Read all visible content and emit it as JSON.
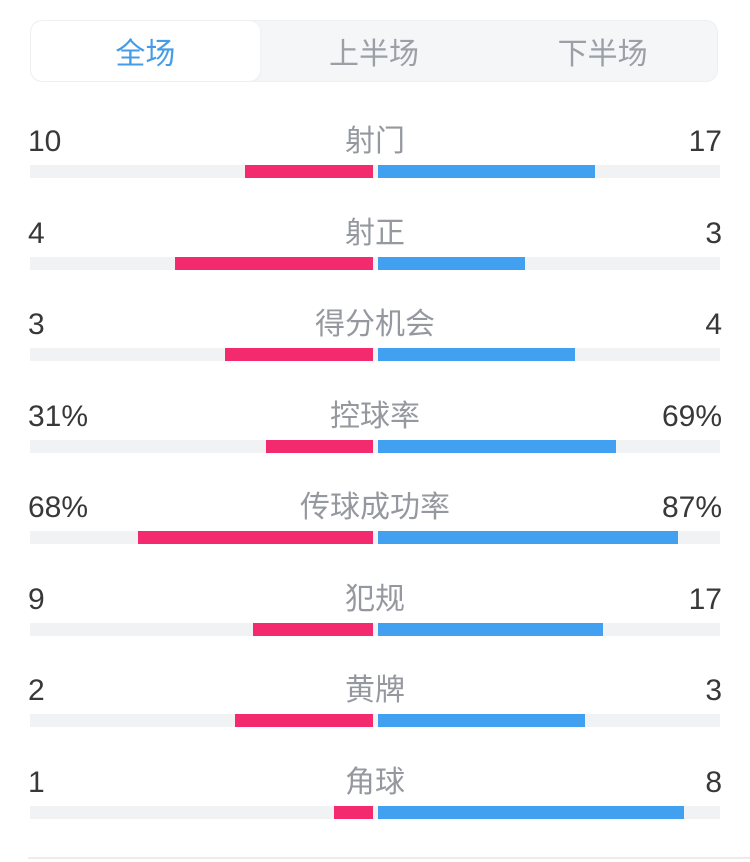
{
  "tabs": [
    {
      "label": "全场",
      "active": true
    },
    {
      "label": "上半场",
      "active": false
    },
    {
      "label": "下半场",
      "active": false
    }
  ],
  "stats": [
    {
      "label": "射门",
      "home_display": "10",
      "away_display": "17",
      "home_value": 10,
      "away_value": 17,
      "percent": false
    },
    {
      "label": "射正",
      "home_display": "4",
      "away_display": "3",
      "home_value": 4,
      "away_value": 3,
      "percent": false
    },
    {
      "label": "得分机会",
      "home_display": "3",
      "away_display": "4",
      "home_value": 3,
      "away_value": 4,
      "percent": false
    },
    {
      "label": "控球率",
      "home_display": "31%",
      "away_display": "69%",
      "home_value": 31,
      "away_value": 69,
      "percent": true
    },
    {
      "label": "传球成功率",
      "home_display": "68%",
      "away_display": "87%",
      "home_value": 68,
      "away_value": 87,
      "percent": true
    },
    {
      "label": "犯规",
      "home_display": "9",
      "away_display": "17",
      "home_value": 9,
      "away_value": 17,
      "percent": false
    },
    {
      "label": "黄牌",
      "home_display": "2",
      "away_display": "3",
      "home_value": 2,
      "away_value": 3,
      "percent": false
    },
    {
      "label": "角球",
      "home_display": "1",
      "away_display": "8",
      "home_value": 1,
      "away_value": 8,
      "percent": false
    }
  ],
  "colors": {
    "home_bar": "#F32A6E",
    "away_bar": "#41A0F0",
    "track": "#F1F2F4",
    "active_tab_text": "#449BE8",
    "inactive_tab_text": "#9B9FA6",
    "value_text": "#383838",
    "label_text": "#95989E"
  },
  "chart_data": {
    "type": "bar",
    "orientation": "horizontal-paired-from-center",
    "title": "全场",
    "categories": [
      "射门",
      "射正",
      "得分机会",
      "控球率",
      "传球成功率",
      "犯规",
      "黄牌",
      "角球"
    ],
    "series": [
      {
        "name": "home",
        "color": "#F32A6E",
        "values": [
          10,
          4,
          3,
          31,
          68,
          9,
          2,
          1
        ],
        "labels": [
          "10",
          "4",
          "3",
          "31%",
          "68%",
          "9",
          "2",
          "1"
        ]
      },
      {
        "name": "away",
        "color": "#41A0F0",
        "values": [
          17,
          3,
          4,
          69,
          87,
          17,
          3,
          8
        ],
        "labels": [
          "17",
          "3",
          "4",
          "69%",
          "87%",
          "17",
          "3",
          "8"
        ]
      }
    ],
    "percent_categories": [
      "控球率",
      "传球成功率"
    ],
    "scaling": "count rows normalized by row sum; percent rows normalized by 100; max half-length 345px",
    "legend": "none",
    "grid": false
  }
}
